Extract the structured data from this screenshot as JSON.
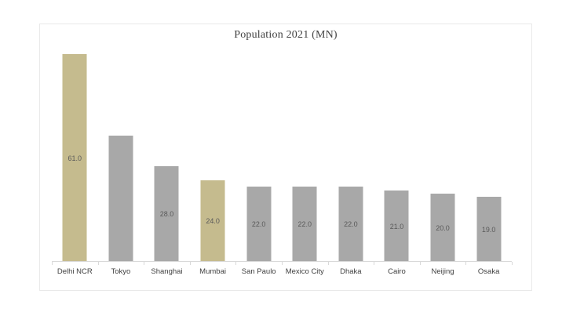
{
  "chart_data": {
    "type": "bar",
    "title": "Population 2021 (MN)",
    "categories": [
      "Delhi NCR",
      "Tokyo",
      "Shanghai",
      "Mumbai",
      "San Paulo",
      "Mexico City",
      "Dhaka",
      "Cairo",
      "Neijing",
      "Osaka"
    ],
    "values": [
      61,
      37,
      28,
      24,
      22,
      22,
      22,
      21,
      20,
      19
    ],
    "data_labels": [
      "61.0",
      "",
      "28.0",
      "24.0",
      "22.0",
      "22.0",
      "22.0",
      "21.0",
      "20.0",
      "19.0"
    ],
    "data_label_position": "center-inside-bar",
    "bar_colors": [
      "#c5bb8e",
      "#a8a8a8",
      "#a8a8a8",
      "#c5bb8e",
      "#a8a8a8",
      "#a8a8a8",
      "#a8a8a8",
      "#a8a8a8",
      "#a8a8a8",
      "#a8a8a8"
    ],
    "highlight_color": "#c5bb8e",
    "default_bar_color": "#a8a8a8",
    "xlabel": "",
    "ylabel": "",
    "ylim": [
      0,
      61
    ],
    "y_axis_visible": false,
    "grid": false,
    "legend": "none",
    "axis_color": "#d9d9d9",
    "value_label_color": "#595959",
    "tick_label_color": "#404040",
    "title_color": "#404040"
  }
}
